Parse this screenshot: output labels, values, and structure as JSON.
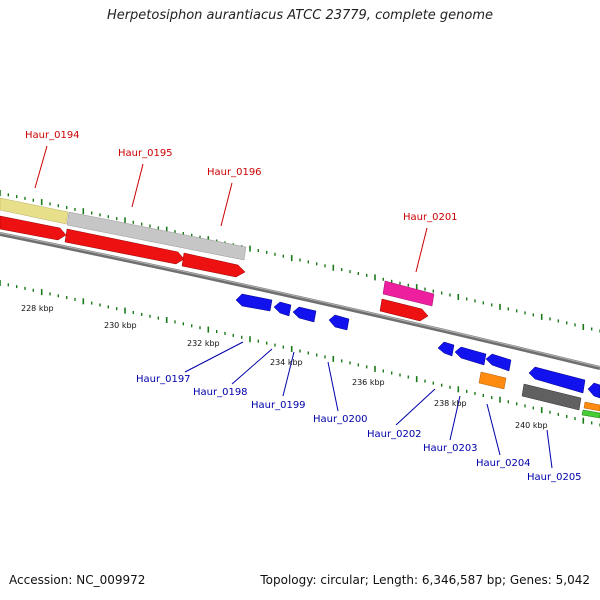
{
  "header": {
    "title": "Herpetosiphon aurantiacus ATCC 23779, complete genome"
  },
  "footer": {
    "accession": "Accession: NC_009972",
    "topology": "Topology: circular; Length: 6,346,587 bp; Genes: 5,042"
  },
  "colors": {
    "forward_label": "#cc0000",
    "reverse_label": "#0000aa",
    "tick": "#1a7a1a",
    "backbone": "#777777"
  },
  "scale_labels": [
    "228 kbp",
    "230 kbp",
    "232 kbp",
    "234 kbp",
    "236 kbp",
    "238 kbp",
    "240 kbp"
  ],
  "forward_genes": [
    {
      "name": "Haur_0194",
      "color": "#e8df8a"
    },
    {
      "name": "Haur_0195",
      "color": "#c8c8c8"
    },
    {
      "name": "Haur_0196",
      "color": "#c8c8c8"
    },
    {
      "name": "Haur_0201",
      "color": "#ee1f9e"
    }
  ],
  "reverse_genes": [
    {
      "name": "Haur_0197",
      "color": "#1010ee"
    },
    {
      "name": "Haur_0198",
      "color": "#1010ee"
    },
    {
      "name": "Haur_0199",
      "color": "#1010ee"
    },
    {
      "name": "Haur_0200",
      "color": "#1010ee"
    },
    {
      "name": "Haur_0202",
      "color": "#1010ee"
    },
    {
      "name": "Haur_0203",
      "color": "#1010ee"
    },
    {
      "name": "Haur_0204",
      "color": "#1010ee"
    },
    {
      "name": "Haur_0205",
      "color": "#1010ee"
    }
  ]
}
